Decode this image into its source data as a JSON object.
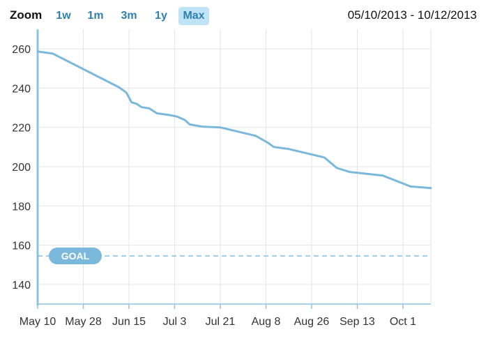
{
  "toolbar": {
    "zoom_label": "Zoom",
    "buttons": [
      {
        "label": "1w",
        "active": false
      },
      {
        "label": "1m",
        "active": false
      },
      {
        "label": "3m",
        "active": false
      },
      {
        "label": "1y",
        "active": false
      },
      {
        "label": "Max",
        "active": true
      }
    ],
    "date_range": "05/10/2013 - 10/12/2013"
  },
  "colors": {
    "line": "#7ab8dc",
    "goal": "#7ab8dc",
    "axis": "#8cc3e3",
    "grid": "#e4e4e4",
    "active_button": "#bfe3f7"
  },
  "chart_data": {
    "type": "line",
    "xlabel": "",
    "ylabel": "",
    "x_tick_labels": [
      "May 10",
      "May 28",
      "Jun 15",
      "Jul 3",
      "Jul 21",
      "Aug 8",
      "Aug 26",
      "Sep 13",
      "Oct 1"
    ],
    "x_tick_dates": [
      "2013-05-10",
      "2013-05-28",
      "2013-06-15",
      "2013-07-03",
      "2013-07-21",
      "2013-08-08",
      "2013-08-26",
      "2013-09-13",
      "2013-10-01"
    ],
    "y_ticks": [
      140,
      160,
      180,
      200,
      220,
      240,
      260
    ],
    "xlim": [
      "2013-05-10",
      "2013-10-12"
    ],
    "ylim": [
      130,
      270
    ],
    "grid": true,
    "series": [
      {
        "points": [
          {
            "x": "2013-05-10",
            "y": 258.7
          },
          {
            "x": "2013-05-16",
            "y": 257.6
          },
          {
            "x": "2013-06-11",
            "y": 240.5
          },
          {
            "x": "2013-06-14",
            "y": 237.7
          },
          {
            "x": "2013-06-16",
            "y": 232.8
          },
          {
            "x": "2013-06-18",
            "y": 232.0
          },
          {
            "x": "2013-06-20",
            "y": 230.3
          },
          {
            "x": "2013-06-23",
            "y": 229.7
          },
          {
            "x": "2013-06-26",
            "y": 227.2
          },
          {
            "x": "2013-07-01",
            "y": 226.3
          },
          {
            "x": "2013-07-04",
            "y": 225.5
          },
          {
            "x": "2013-07-07",
            "y": 223.8
          },
          {
            "x": "2013-07-09",
            "y": 221.5
          },
          {
            "x": "2013-07-14",
            "y": 220.4
          },
          {
            "x": "2013-07-21",
            "y": 220.0
          },
          {
            "x": "2013-08-04",
            "y": 215.7
          },
          {
            "x": "2013-08-09",
            "y": 212.0
          },
          {
            "x": "2013-08-11",
            "y": 210.1
          },
          {
            "x": "2013-08-17",
            "y": 209.0
          },
          {
            "x": "2013-08-31",
            "y": 204.7
          },
          {
            "x": "2013-09-05",
            "y": 199.3
          },
          {
            "x": "2013-09-10",
            "y": 197.3
          },
          {
            "x": "2013-09-23",
            "y": 195.5
          },
          {
            "x": "2013-10-04",
            "y": 189.9
          },
          {
            "x": "2013-10-12",
            "y": 189.1
          }
        ]
      }
    ],
    "goal": {
      "label": "GOAL",
      "value": 154.5
    }
  }
}
